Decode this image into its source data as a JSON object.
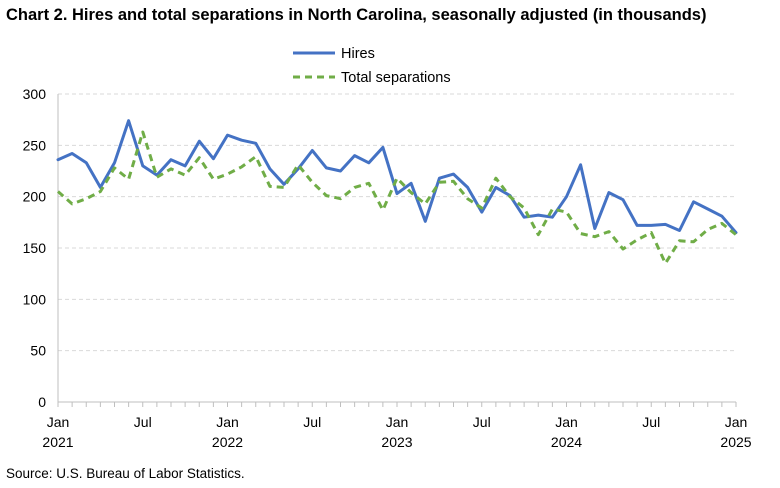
{
  "chart_data": {
    "type": "line",
    "title": "Chart 2. Hires and total separations in North Carolina, seasonally adjusted (in thousands)",
    "source": "Source: U.S. Bureau of Labor Statistics.",
    "ylim": [
      0,
      300
    ],
    "yticks": [
      "300",
      "250",
      "200",
      "150",
      "100",
      "50",
      "0"
    ],
    "ytick_values": [
      300,
      250,
      200,
      150,
      100,
      50,
      0
    ],
    "x_months": [
      "2021-01",
      "2021-02",
      "2021-03",
      "2021-04",
      "2021-05",
      "2021-06",
      "2021-07",
      "2021-08",
      "2021-09",
      "2021-10",
      "2021-11",
      "2021-12",
      "2022-01",
      "2022-02",
      "2022-03",
      "2022-04",
      "2022-05",
      "2022-06",
      "2022-07",
      "2022-08",
      "2022-09",
      "2022-10",
      "2022-11",
      "2022-12",
      "2023-01",
      "2023-02",
      "2023-03",
      "2023-04",
      "2023-05",
      "2023-06",
      "2023-07",
      "2023-08",
      "2023-09",
      "2023-10",
      "2023-11",
      "2023-12",
      "2024-01",
      "2024-02",
      "2024-03",
      "2024-04",
      "2024-05",
      "2024-06",
      "2024-07",
      "2024-08",
      "2024-09",
      "2024-10",
      "2024-11",
      "2024-12",
      "2025-01"
    ],
    "xtick_labels": [
      {
        "month": "Jan",
        "year": "2021",
        "index": 0
      },
      {
        "month": "Jul",
        "year": "",
        "index": 6
      },
      {
        "month": "Jan",
        "year": "2022",
        "index": 12
      },
      {
        "month": "Jul",
        "year": "",
        "index": 18
      },
      {
        "month": "Jan",
        "year": "2023",
        "index": 24
      },
      {
        "month": "Jul",
        "year": "",
        "index": 30
      },
      {
        "month": "Jan",
        "year": "2024",
        "index": 36
      },
      {
        "month": "Jul",
        "year": "",
        "index": 42
      },
      {
        "month": "Jan",
        "year": "2025",
        "index": 48
      }
    ],
    "grid": true,
    "legend_position": "top-center",
    "series": [
      {
        "name": "Hires",
        "color": "#4472c4",
        "style": "solid",
        "values": [
          236,
          242,
          233,
          209,
          233,
          274,
          230,
          221,
          236,
          230,
          254,
          237,
          260,
          255,
          252,
          227,
          212,
          227,
          245,
          228,
          225,
          240,
          233,
          248,
          203,
          213,
          176,
          218,
          222,
          209,
          185,
          209,
          201,
          180,
          182,
          180,
          200,
          231,
          169,
          204,
          197,
          172,
          172,
          173,
          167,
          195,
          188,
          181,
          165
        ]
      },
      {
        "name": "Total separations",
        "color": "#70ad47",
        "style": "dashed",
        "values": [
          205,
          193,
          198,
          205,
          228,
          217,
          263,
          219,
          227,
          221,
          238,
          217,
          222,
          229,
          239,
          210,
          209,
          231,
          214,
          201,
          198,
          209,
          213,
          187,
          218,
          204,
          193,
          214,
          215,
          198,
          189,
          218,
          200,
          189,
          163,
          188,
          185,
          164,
          161,
          166,
          149,
          158,
          165,
          135,
          157,
          156,
          168,
          174,
          163
        ]
      }
    ]
  }
}
